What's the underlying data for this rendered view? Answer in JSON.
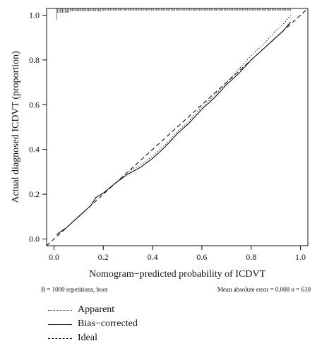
{
  "chart_data": {
    "type": "line",
    "title": "",
    "xlabel": "Nomogram−predicted probability of ICDVT",
    "ylabel": "Actual diagnosed ICDVT (proportion)",
    "xlim": [
      -0.03,
      1.03
    ],
    "ylim": [
      -0.03,
      1.03
    ],
    "xticks": [
      "0.0",
      "0.2",
      "0.4",
      "0.6",
      "0.8",
      "1.0"
    ],
    "yticks": [
      "0.0",
      "0.2",
      "0.4",
      "0.6",
      "0.8",
      "1.0"
    ],
    "grid": false,
    "legend_position": "bottom-left",
    "series": [
      {
        "name": "Apparent",
        "style": "dotted",
        "x": [
          0.01,
          0.05,
          0.1,
          0.15,
          0.17,
          0.2,
          0.25,
          0.3,
          0.35,
          0.4,
          0.45,
          0.5,
          0.55,
          0.6,
          0.65,
          0.7,
          0.75,
          0.8,
          0.85,
          0.9,
          0.93,
          0.96
        ],
        "y": [
          0.02,
          0.05,
          0.1,
          0.15,
          0.185,
          0.205,
          0.25,
          0.3,
          0.33,
          0.37,
          0.42,
          0.48,
          0.53,
          0.59,
          0.64,
          0.7,
          0.76,
          0.82,
          0.87,
          0.93,
          0.96,
          1.0
        ]
      },
      {
        "name": "Bias−corrected",
        "style": "solid",
        "x": [
          0.01,
          0.05,
          0.1,
          0.15,
          0.17,
          0.2,
          0.25,
          0.3,
          0.35,
          0.4,
          0.45,
          0.5,
          0.55,
          0.6,
          0.65,
          0.7,
          0.75,
          0.8,
          0.85,
          0.9,
          0.93,
          0.96
        ],
        "y": [
          0.02,
          0.05,
          0.1,
          0.15,
          0.185,
          0.205,
          0.25,
          0.29,
          0.32,
          0.36,
          0.41,
          0.47,
          0.52,
          0.58,
          0.63,
          0.69,
          0.74,
          0.8,
          0.85,
          0.9,
          0.93,
          0.97
        ]
      },
      {
        "name": "Ideal",
        "style": "dashed",
        "x": [
          -0.03,
          1.03
        ],
        "y": [
          -0.03,
          1.03
        ]
      }
    ],
    "rug_top_range": [
      0.01,
      0.96
    ],
    "annotations": {
      "left": "B = 1000 repetitions, boot",
      "right_prefix": "Mean absolute error = 0.008",
      "right_n_symbol": "n",
      "right_n_value": "= 610"
    }
  },
  "colors": {
    "line": "#111111",
    "background": "#ffffff"
  }
}
